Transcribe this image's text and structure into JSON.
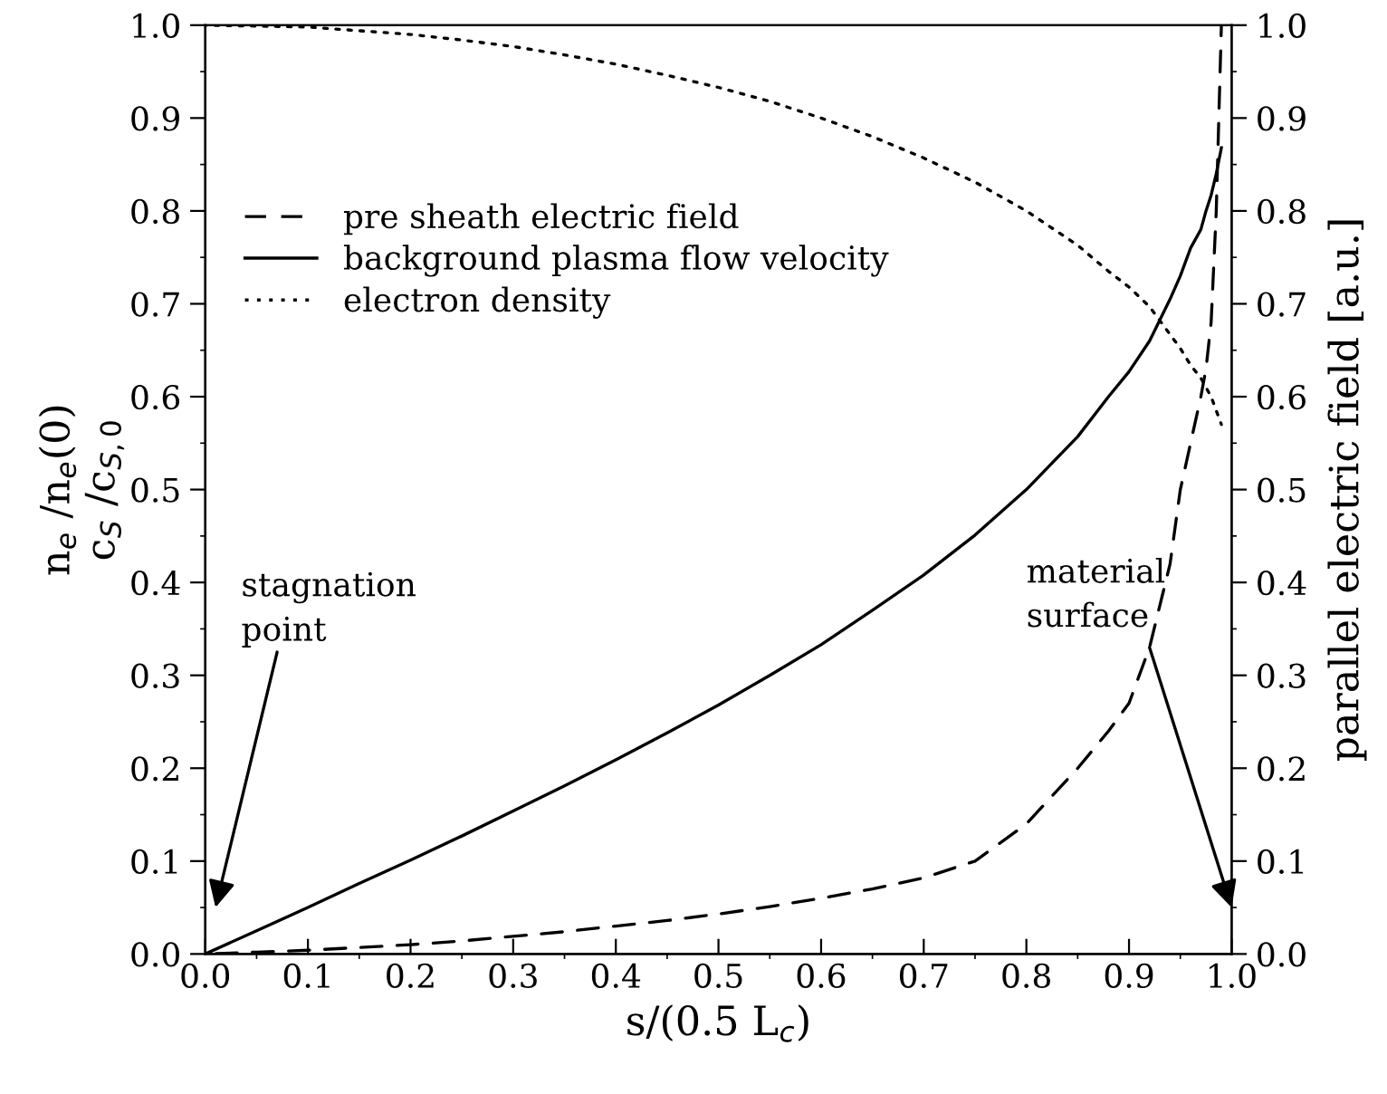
{
  "chart_data": {
    "type": "line",
    "xlabel": "s/(0.5 L$_{c}$)",
    "ylabel": "n$_{e}$ /n$_{e}$(0)\nc$_{S}$ /c$_{S,0}$",
    "y2label": "parallel electric field [a.u.]",
    "x": [
      0,
      0.05,
      0.1,
      0.15,
      0.2,
      0.25,
      0.3,
      0.35,
      0.4,
      0.45,
      0.5,
      0.55,
      0.6,
      0.65,
      0.7,
      0.75,
      0.8,
      0.85,
      0.88,
      0.9,
      0.92,
      0.94,
      0.95,
      0.96,
      0.97,
      0.975,
      0.98,
      0.985,
      0.99
    ],
    "series": [
      {
        "name": "pre sheath electric field",
        "color": "#000000",
        "line_style": "dashed",
        "axis": "y2",
        "values": [
          0,
          0.002,
          0.004,
          0.007,
          0.01,
          0.014,
          0.019,
          0.024,
          0.03,
          0.036,
          0.043,
          0.051,
          0.06,
          0.07,
          0.082,
          0.1,
          0.14,
          0.2,
          0.24,
          0.27,
          0.33,
          0.42,
          0.5,
          0.55,
          0.6,
          0.63,
          0.68,
          0.8,
          1.0
        ]
      },
      {
        "name": "background plasma flow velocity",
        "color": "#000000",
        "line_style": "solid",
        "values": [
          0,
          0.025,
          0.05,
          0.076,
          0.101,
          0.127,
          0.154,
          0.181,
          0.209,
          0.238,
          0.268,
          0.3,
          0.333,
          0.37,
          0.408,
          0.451,
          0.5,
          0.557,
          0.6,
          0.627,
          0.66,
          0.705,
          0.73,
          0.76,
          0.78,
          0.8,
          0.817,
          0.84,
          0.868
        ]
      },
      {
        "name": "electron density",
        "color": "#000000",
        "line_style": "dotted",
        "values": [
          1.0,
          0.999,
          0.998,
          0.994,
          0.99,
          0.984,
          0.977,
          0.968,
          0.958,
          0.946,
          0.933,
          0.918,
          0.9,
          0.88,
          0.857,
          0.831,
          0.8,
          0.763,
          0.735,
          0.718,
          0.697,
          0.667,
          0.652,
          0.634,
          0.62,
          0.61,
          0.6,
          0.585,
          0.57
        ]
      }
    ],
    "xlim": [
      0,
      1
    ],
    "ylim": [
      0,
      1
    ],
    "y2lim": [
      0,
      1
    ],
    "xticks": [
      {
        "value": 0,
        "label": "0.0"
      },
      0.1,
      0.2,
      0.3,
      0.4,
      0.5,
      0.6,
      0.7,
      0.8,
      0.9,
      {
        "value": 1,
        "label": "1.0"
      }
    ],
    "yticks": [
      {
        "value": 0,
        "label": "0.0"
      },
      0.1,
      0.2,
      0.3,
      0.4,
      0.5,
      0.6,
      0.7,
      0.8,
      0.9,
      {
        "value": 1,
        "label": "1.0"
      }
    ],
    "y2ticks": [
      {
        "value": 0,
        "label": "0.0"
      },
      0.1,
      0.2,
      0.3,
      0.4,
      0.5,
      0.6,
      0.7,
      0.8,
      0.9,
      {
        "value": 1,
        "label": "1.0"
      }
    ],
    "annotations": [
      "stagnation\npoint",
      "material\nsurface"
    ],
    "legend": "top left",
    "grid": false
  }
}
